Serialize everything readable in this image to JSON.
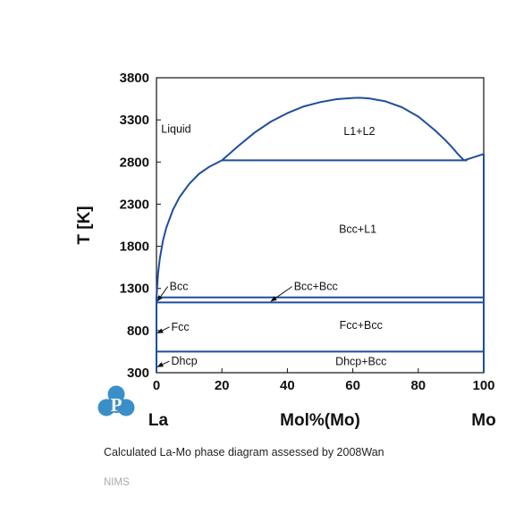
{
  "chart_data": {
    "type": "line",
    "title": "",
    "xlabel": "Mol%(Mo)",
    "ylabel": "T [K]",
    "x_left_label": "La",
    "x_right_label": "Mo",
    "xlim": [
      0,
      100
    ],
    "ylim": [
      300,
      3800
    ],
    "xticks": [
      0,
      20,
      40,
      60,
      80,
      100
    ],
    "yticks": [
      300,
      800,
      1300,
      1800,
      2300,
      2800,
      3300,
      3800
    ],
    "grid": false,
    "line_color": "#1f4e9c",
    "series": [
      {
        "x": [
          0,
          0.1,
          0.5,
          1,
          2,
          3,
          5,
          7,
          10,
          13,
          16,
          20
        ],
        "y": [
          1193,
          1250,
          1480,
          1650,
          1870,
          2020,
          2230,
          2380,
          2540,
          2660,
          2740,
          2820
        ]
      },
      {
        "x": [
          20,
          95
        ],
        "y": [
          2820,
          2820
        ]
      },
      {
        "x": [
          20,
          25,
          30,
          35,
          40,
          45,
          50,
          55,
          60,
          62,
          65,
          70,
          75,
          80,
          85,
          88,
          90,
          92,
          94
        ],
        "y": [
          2820,
          2990,
          3150,
          3280,
          3380,
          3460,
          3510,
          3545,
          3560,
          3562,
          3555,
          3520,
          3450,
          3340,
          3180,
          3070,
          2990,
          2900,
          2820
        ]
      },
      {
        "x": [
          94,
          100
        ],
        "y": [
          2820,
          2895
        ]
      },
      {
        "x": [
          0,
          100
        ],
        "y": [
          1193,
          1193
        ]
      },
      {
        "x": [
          0,
          100
        ],
        "y": [
          1134,
          1134
        ]
      },
      {
        "x": [
          0,
          100
        ],
        "y": [
          550,
          550
        ]
      },
      {
        "x": [
          0,
          0
        ],
        "y": [
          300,
          1193
        ]
      },
      {
        "x": [
          100,
          100
        ],
        "y": [
          300,
          2895
        ]
      }
    ],
    "region_labels": [
      {
        "text": "Liquid",
        "x": 6,
        "y": 3150
      },
      {
        "text": "L1+L2",
        "x": 62,
        "y": 3120
      },
      {
        "text": "Bcc+L1",
        "x": 61.5,
        "y": 1960
      },
      {
        "text": "Fcc+Bcc",
        "x": 62.5,
        "y": 820
      },
      {
        "text": "Dhcp+Bcc",
        "x": 62.5,
        "y": 390
      },
      {
        "text": "Bcc",
        "x": 4,
        "y": 1280,
        "arrow_to": [
          0.3,
          1150
        ]
      },
      {
        "text": "Bcc+Bcc",
        "x": 42,
        "y": 1280,
        "arrow_to": [
          35,
          1148
        ]
      },
      {
        "text": "Fcc",
        "x": 4.5,
        "y": 800,
        "arrow_to": [
          0.3,
          770
        ]
      },
      {
        "text": "Dhcp",
        "x": 4.5,
        "y": 395,
        "arrow_to": [
          0.3,
          370
        ]
      }
    ]
  },
  "caption": "Calculated La-Mo phase diagram assessed by 2008Wan",
  "source": "NIMS",
  "logo": {
    "letter": "P",
    "color": "#3a8fc9"
  }
}
